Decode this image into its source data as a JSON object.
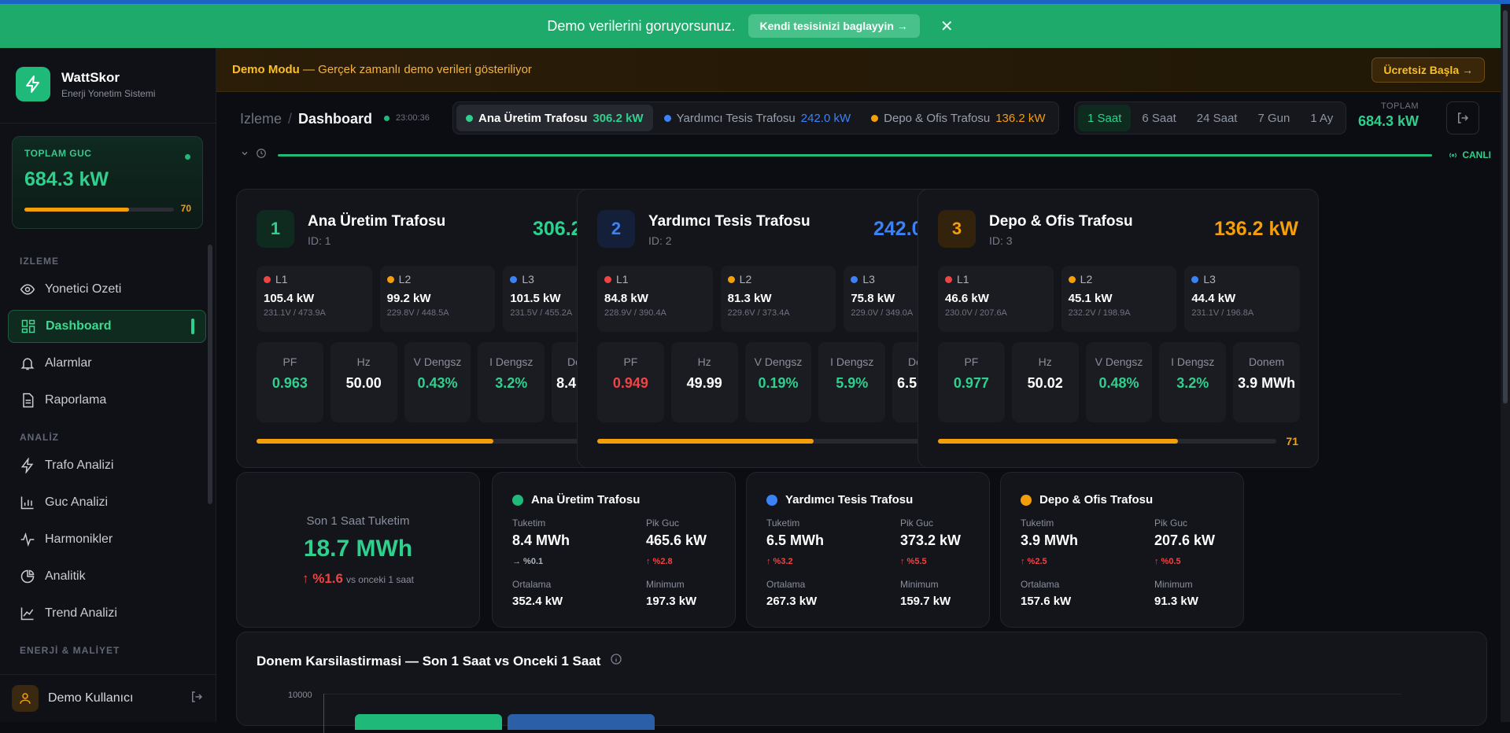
{
  "banner": {
    "message": "Demo verilerini goruyorsunuz.",
    "cta": "Kendi tesisinizi baglayyin →",
    "close": "✕"
  },
  "app": {
    "name": "WattSkor",
    "subtitle": "Enerji Yonetim Sistemi"
  },
  "sidebar": {
    "total": {
      "label": "TOPLAM GUC",
      "value": "684.3 kW",
      "score": "70",
      "score_fraction": 0.7
    },
    "sections": [
      {
        "title": "IZLEME",
        "items": [
          {
            "label": "Yonetici Ozeti",
            "icon": "eye-icon"
          },
          {
            "label": "Dashboard",
            "icon": "dashboard-grid-icon",
            "active": true
          },
          {
            "label": "Alarmlar",
            "icon": "bell-icon"
          },
          {
            "label": "Raporlama",
            "icon": "document-icon"
          }
        ]
      },
      {
        "title": "ANALİZ",
        "items": [
          {
            "label": "Trafo Analizi",
            "icon": "lightning-icon"
          },
          {
            "label": "Guc Analizi",
            "icon": "bar-chart-icon"
          },
          {
            "label": "Harmonikler",
            "icon": "waveform-icon"
          },
          {
            "label": "Analitik",
            "icon": "pie-chart-icon"
          },
          {
            "label": "Trend Analizi",
            "icon": "trend-line-icon"
          }
        ]
      },
      {
        "title": "ENERJİ & MALİYET",
        "items": []
      }
    ],
    "user": {
      "name": "Demo Kullanıcı"
    }
  },
  "demobar": {
    "bold": "Demo Modu",
    "text": " — Gerçek zamanlı demo verileri gösteriliyor",
    "button": "Ücretsiz Başla →"
  },
  "header": {
    "crumb_root": "Izleme",
    "crumb_sep": "/",
    "crumb_current": "Dashboard",
    "time": "23:00:36",
    "tabs": [
      {
        "label": "Ana Üretim Trafosu",
        "value": "306.2 kW",
        "color": "#2fd08e",
        "selected": true
      },
      {
        "label": "Yardımcı Tesis Trafosu",
        "value": "242.0 kW",
        "color": "#3b82f6"
      },
      {
        "label": "Depo & Ofis Trafosu",
        "value": "136.2 kW",
        "color": "#f59e0b"
      }
    ],
    "ranges": [
      "1 Saat",
      "6 Saat",
      "24 Saat",
      "7 Gun",
      "1 Ay"
    ],
    "selected_range": "1 Saat",
    "total_label": "TOPLAM",
    "total_value": "684.3 kW",
    "live": "CANLI"
  },
  "transformers": [
    {
      "num": "1",
      "name": "Ana Üretim Trafosu",
      "id": "ID: 1",
      "power": "306.2 kW",
      "color": "#2fd08e",
      "numbg": "#0f2a1e",
      "phases": [
        {
          "name": "L1",
          "color": "#ef4444",
          "kw": "105.4 kW",
          "va": "231.1V / 473.9A"
        },
        {
          "name": "L2",
          "color": "#f59e0b",
          "kw": "99.2 kW",
          "va": "229.8V / 448.5A"
        },
        {
          "name": "L3",
          "color": "#3b82f6",
          "kw": "101.5 kW",
          "va": "231.5V / 455.2A"
        }
      ],
      "metrics": [
        {
          "label": "PF",
          "value": "0.963",
          "color": "#2fd08e"
        },
        {
          "label": "Hz",
          "value": "50.00",
          "color": "#ffffff"
        },
        {
          "label": "V Dengsz",
          "value": "0.43%",
          "color": "#2fd08e"
        },
        {
          "label": "I Dengsz",
          "value": "3.2%",
          "color": "#2fd08e"
        },
        {
          "label": "Donem",
          "value": "8.4 MWh",
          "color": "#ffffff"
        }
      ],
      "score": "70",
      "score_fraction": 0.7
    },
    {
      "num": "2",
      "name": "Yardımcı Tesis Trafosu",
      "id": "ID: 2",
      "power": "242.0 kW",
      "color": "#3b82f6",
      "numbg": "#142039",
      "phases": [
        {
          "name": "L1",
          "color": "#ef4444",
          "kw": "84.8 kW",
          "va": "228.9V / 390.4A"
        },
        {
          "name": "L2",
          "color": "#f59e0b",
          "kw": "81.3 kW",
          "va": "229.6V / 373.4A"
        },
        {
          "name": "L3",
          "color": "#3b82f6",
          "kw": "75.8 kW",
          "va": "229.0V / 349.0A"
        }
      ],
      "metrics": [
        {
          "label": "PF",
          "value": "0.949",
          "color": "#ef4444"
        },
        {
          "label": "Hz",
          "value": "49.99",
          "color": "#ffffff"
        },
        {
          "label": "V Dengsz",
          "value": "0.19%",
          "color": "#2fd08e"
        },
        {
          "label": "I Dengsz",
          "value": "5.9%",
          "color": "#2fd08e"
        },
        {
          "label": "Donem",
          "value": "6.5 MWh",
          "color": "#ffffff"
        }
      ],
      "score": "64",
      "score_fraction": 0.64
    },
    {
      "num": "3",
      "name": "Depo & Ofis Trafosu",
      "id": "ID: 3",
      "power": "136.2 kW",
      "color": "#f59e0b",
      "numbg": "#33230c",
      "phases": [
        {
          "name": "L1",
          "color": "#ef4444",
          "kw": "46.6 kW",
          "va": "230.0V / 207.6A"
        },
        {
          "name": "L2",
          "color": "#f59e0b",
          "kw": "45.1 kW",
          "va": "232.2V / 198.9A"
        },
        {
          "name": "L3",
          "color": "#3b82f6",
          "kw": "44.4 kW",
          "va": "231.1V / 196.8A"
        }
      ],
      "metrics": [
        {
          "label": "PF",
          "value": "0.977",
          "color": "#2fd08e"
        },
        {
          "label": "Hz",
          "value": "50.02",
          "color": "#ffffff"
        },
        {
          "label": "V Dengsz",
          "value": "0.48%",
          "color": "#2fd08e"
        },
        {
          "label": "I Dengsz",
          "value": "3.2%",
          "color": "#2fd08e"
        },
        {
          "label": "Donem",
          "value": "3.9 MWh",
          "color": "#ffffff"
        }
      ],
      "score": "71",
      "score_fraction": 0.71
    }
  ],
  "consumption": {
    "label": "Son 1 Saat Tuketim",
    "value": "18.7 MWh",
    "change": "↑ %1.6",
    "compare": "vs onceki 1 saat"
  },
  "summaries": [
    {
      "name": "Ana Üretim Trafosu",
      "color": "#1fb97a",
      "tuketim_label": "Tuketim",
      "tuketim": "8.4 MWh",
      "tuketim_change": "→ %0.1",
      "tuketim_change_color": "#aeb3bd",
      "pik_label": "Pik Guc",
      "pik": "465.6 kW",
      "pik_change": "↑ %2.8",
      "pik_change_color": "#ef4444",
      "ort_label": "Ortalama",
      "ort": "352.4 kW",
      "min_label": "Minimum",
      "min": "197.3 kW"
    },
    {
      "name": "Yardımcı Tesis Trafosu",
      "color": "#3b82f6",
      "tuketim_label": "Tuketim",
      "tuketim": "6.5 MWh",
      "tuketim_change": "↑ %3.2",
      "tuketim_change_color": "#ef4444",
      "pik_label": "Pik Guc",
      "pik": "373.2 kW",
      "pik_change": "↑ %5.5",
      "pik_change_color": "#ef4444",
      "ort_label": "Ortalama",
      "ort": "267.3 kW",
      "min_label": "Minimum",
      "min": "159.7 kW"
    },
    {
      "name": "Depo & Ofis Trafosu",
      "color": "#f59e0b",
      "tuketim_label": "Tuketim",
      "tuketim": "3.9 MWh",
      "tuketim_change": "↑ %2.5",
      "tuketim_change_color": "#ef4444",
      "pik_label": "Pik Guc",
      "pik": "207.6 kW",
      "pik_change": "↑ %0.5",
      "pik_change_color": "#ef4444",
      "ort_label": "Ortalama",
      "ort": "157.6 kW",
      "min_label": "Minimum",
      "min": "91.3 kW"
    }
  ],
  "comparison": {
    "title": "Donem Karsilastirmasi — Son 1 Saat vs Onceki 1 Saat",
    "y_max": "10000"
  }
}
